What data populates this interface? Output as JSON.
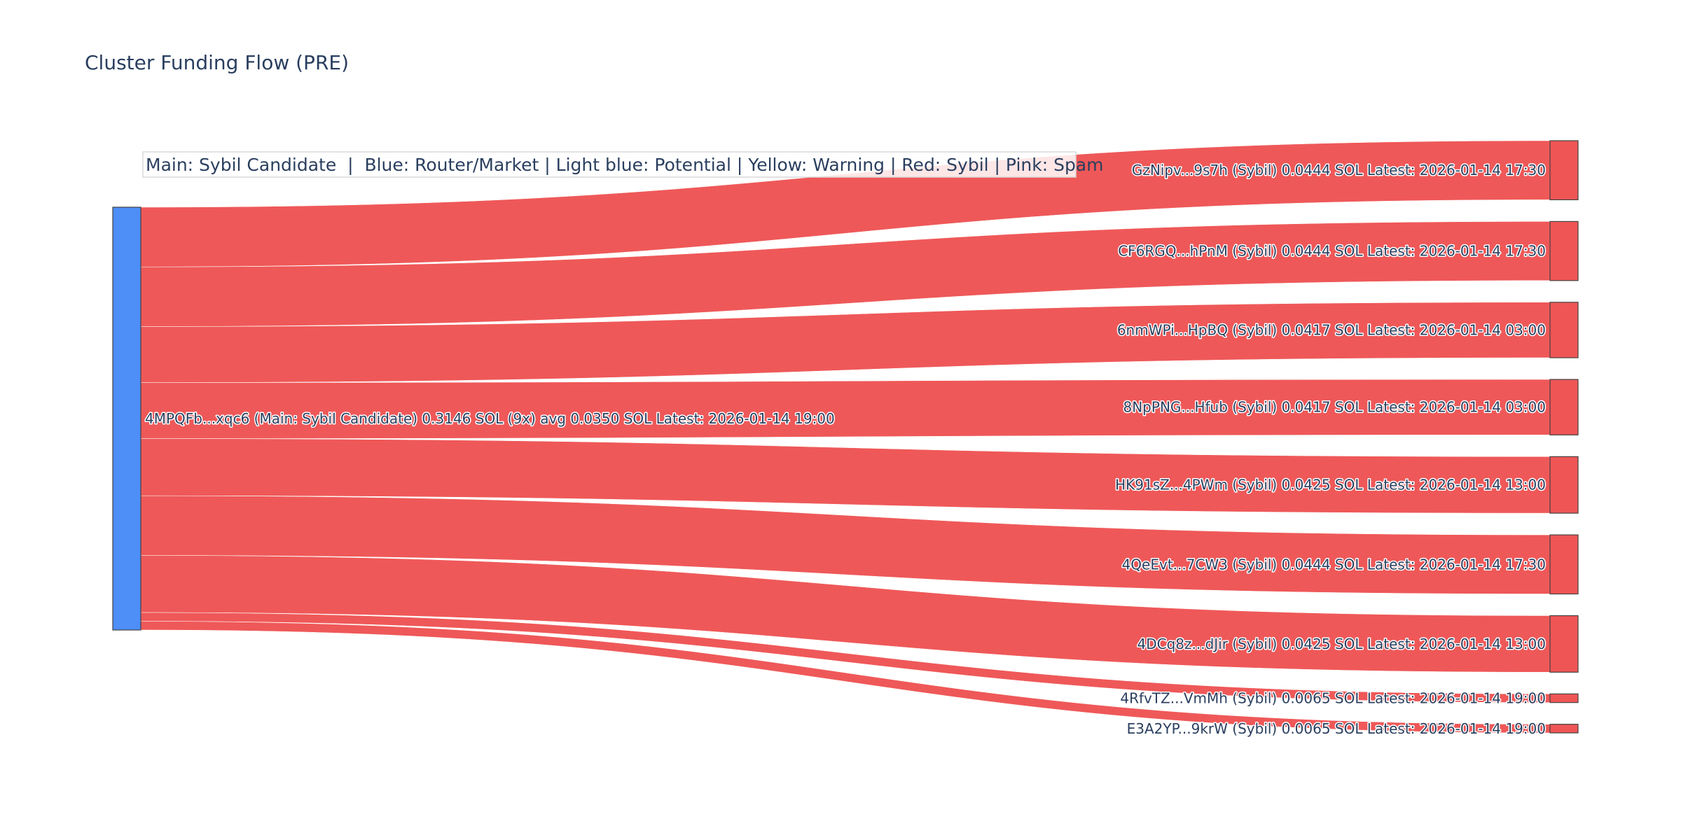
{
  "title": "Cluster Funding Flow (PRE)",
  "legend_text": "Main: Sybil Candidate  |  Blue: Router/Market | Light blue: Potential | Yellow: Warning | Red: Sybil | Pink: Spam",
  "colors": {
    "source_node": "#4e8ef7",
    "sybil_node": "#ef5555",
    "link": "#ef5555",
    "text": "#2a3f5f"
  },
  "chart_data": {
    "type": "sankey",
    "title": "Cluster Funding Flow (PRE)",
    "source": {
      "label": "4MPQFb...xqc6 (Main: Sybil Candidate) 0.3146 SOL (9x) avg 0.0350 SOL Latest: 2026-01-14 19:00",
      "total_sol": 0.3146,
      "count": 9,
      "avg_sol": 0.035,
      "latest": "2026-01-14 19:00",
      "category": "Main: Sybil Candidate"
    },
    "targets": [
      {
        "label": "GzNipv...9s7h (Sybil) 0.0444 SOL Latest: 2026-01-14 17:30",
        "value": 0.0444,
        "category": "Sybil",
        "latest": "2026-01-14 17:30"
      },
      {
        "label": "CF6RGQ...hPnM (Sybil) 0.0444 SOL Latest: 2026-01-14 17:30",
        "value": 0.0444,
        "category": "Sybil",
        "latest": "2026-01-14 17:30"
      },
      {
        "label": "6nmWPi...HpBQ (Sybil) 0.0417 SOL Latest: 2026-01-14 03:00",
        "value": 0.0417,
        "category": "Sybil",
        "latest": "2026-01-14 03:00"
      },
      {
        "label": "8NpPNG...Hfub (Sybil) 0.0417 SOL Latest: 2026-01-14 03:00",
        "value": 0.0417,
        "category": "Sybil",
        "latest": "2026-01-14 03:00"
      },
      {
        "label": "HK91sZ...4PWm (Sybil) 0.0425 SOL Latest: 2026-01-14 13:00",
        "value": 0.0425,
        "category": "Sybil",
        "latest": "2026-01-14 13:00"
      },
      {
        "label": "4QeEvt...7CW3 (Sybil) 0.0444 SOL Latest: 2026-01-14 17:30",
        "value": 0.0444,
        "category": "Sybil",
        "latest": "2026-01-14 17:30"
      },
      {
        "label": "4DCq8z...dJir (Sybil) 0.0425 SOL Latest: 2026-01-14 13:00",
        "value": 0.0425,
        "category": "Sybil",
        "latest": "2026-01-14 13:00"
      },
      {
        "label": "4RfvTZ...VmMh (Sybil) 0.0065 SOL Latest: 2026-01-14 19:00",
        "value": 0.0065,
        "category": "Sybil",
        "latest": "2026-01-14 19:00"
      },
      {
        "label": "E3A2YP...9krW (Sybil) 0.0065 SOL Latest: 2026-01-14 19:00",
        "value": 0.0065,
        "category": "Sybil",
        "latest": "2026-01-14 19:00"
      }
    ]
  }
}
